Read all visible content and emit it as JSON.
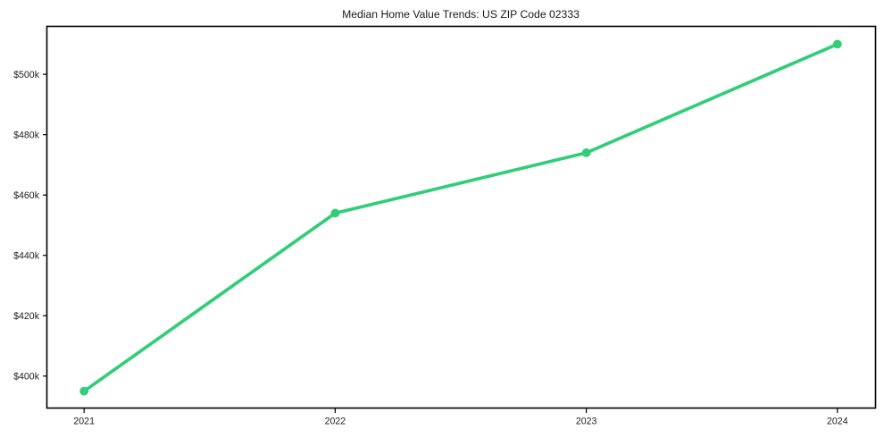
{
  "chart_data": {
    "type": "line",
    "title": "Median Home Value Trends: US ZIP Code 02333",
    "xlabel": "",
    "ylabel": "",
    "x": [
      2021,
      2022,
      2023,
      2024
    ],
    "x_tick_labels": [
      "2021",
      "2022",
      "2023",
      "2024"
    ],
    "series": [
      {
        "name": "Median Home Value",
        "values": [
          395000,
          454000,
          474000,
          510000
        ]
      }
    ],
    "y_ticks": [
      {
        "value": 400000,
        "label": "$400k"
      },
      {
        "value": 420000,
        "label": "$420k"
      },
      {
        "value": 440000,
        "label": "$440k"
      },
      {
        "value": 460000,
        "label": "$460k"
      },
      {
        "value": 480000,
        "label": "$480k"
      },
      {
        "value": 500000,
        "label": "$500k"
      }
    ],
    "xlim": [
      2020.85,
      2024.15
    ],
    "ylim": [
      389250,
      515750
    ],
    "grid": false,
    "legend_position": "none",
    "marker": "circle"
  },
  "colors": {
    "line": "#32cd78",
    "marker": "#32cd78",
    "axis": "#000000",
    "tick_text": "#222222",
    "title_text": "#1a1a1a",
    "background": "#ffffff"
  }
}
